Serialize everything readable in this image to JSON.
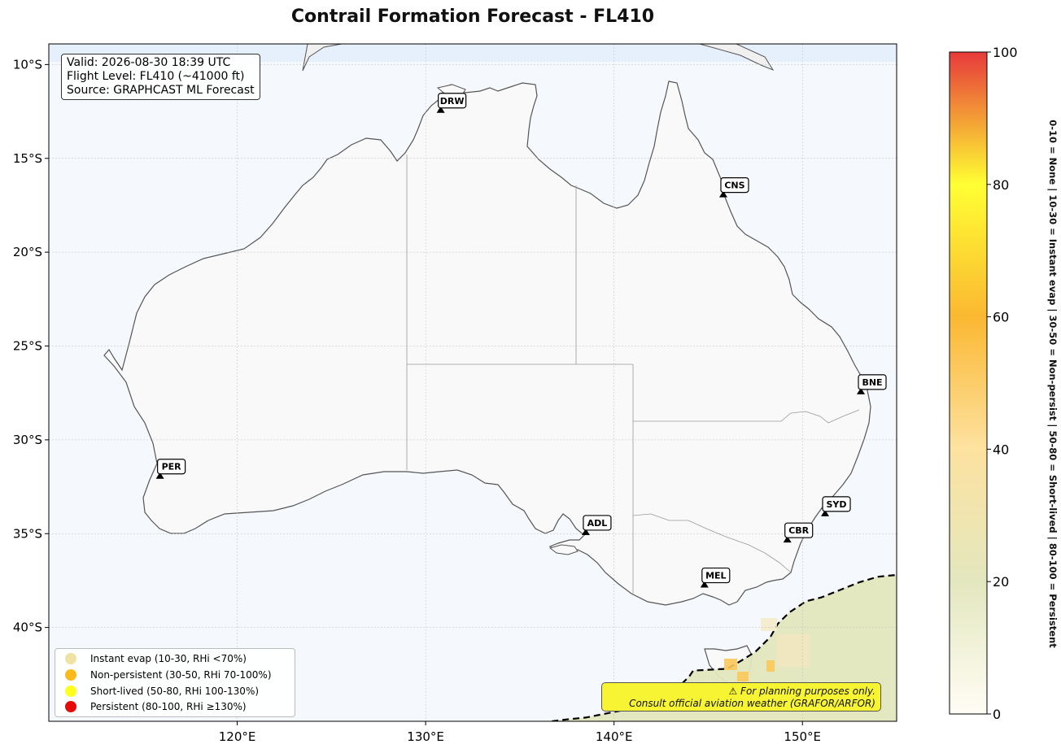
{
  "title": "Contrail Formation Forecast - FL410",
  "info": {
    "valid": "Valid: 2026-08-30 18:39 UTC",
    "flight_level": "Flight Level: FL410 (~41000 ft)",
    "source": "Source: GRAPHCAST ML Forecast"
  },
  "map": {
    "lon_range": [
      110,
      155
    ],
    "lat_range": [
      -45,
      -8.9
    ],
    "x_ticks": [
      {
        "value": 120,
        "label": "120°E"
      },
      {
        "value": 130,
        "label": "130°E"
      },
      {
        "value": 140,
        "label": "140°E"
      },
      {
        "value": 150,
        "label": "150°E"
      }
    ],
    "y_ticks": [
      {
        "value": -10,
        "label": "10°S"
      },
      {
        "value": -15,
        "label": "15°S"
      },
      {
        "value": -20,
        "label": "20°S"
      },
      {
        "value": -25,
        "label": "25°S"
      },
      {
        "value": -30,
        "label": "30°S"
      },
      {
        "value": -35,
        "label": "35°S"
      },
      {
        "value": -40,
        "label": "40°S"
      }
    ],
    "grid": true,
    "ocean_color": "#f5f9fd",
    "land_color": "#f9f9f9",
    "airports": [
      {
        "code": "DRW",
        "lon": 130.8,
        "lat": -12.4
      },
      {
        "code": "CNS",
        "lon": 145.8,
        "lat": -16.9
      },
      {
        "code": "BNE",
        "lon": 153.1,
        "lat": -27.4
      },
      {
        "code": "PER",
        "lon": 115.9,
        "lat": -31.9
      },
      {
        "code": "ADL",
        "lon": 138.5,
        "lat": -34.9
      },
      {
        "code": "SYD",
        "lon": 151.2,
        "lat": -33.9
      },
      {
        "code": "CBR",
        "lon": 149.2,
        "lat": -35.3
      },
      {
        "code": "MEL",
        "lon": 144.8,
        "lat": -37.7
      }
    ],
    "contrail_region_boundary": [
      [
        136.7,
        -45.0
      ],
      [
        137.5,
        -44.9
      ],
      [
        138.5,
        -44.8
      ],
      [
        140.0,
        -44.5
      ],
      [
        141.5,
        -44.2
      ],
      [
        142.5,
        -43.7
      ],
      [
        143.4,
        -43.2
      ],
      [
        144.0,
        -42.6
      ],
      [
        144.2,
        -42.3
      ],
      [
        146.0,
        -42.2
      ],
      [
        146.7,
        -41.8
      ],
      [
        147.5,
        -41.3
      ],
      [
        148.3,
        -40.5
      ],
      [
        148.7,
        -39.8
      ],
      [
        149.3,
        -39.2
      ],
      [
        150.2,
        -38.6
      ],
      [
        151.0,
        -38.4
      ],
      [
        152.0,
        -38.0
      ],
      [
        153.0,
        -37.6
      ],
      [
        154.0,
        -37.3
      ],
      [
        155.0,
        -37.2
      ]
    ]
  },
  "legend": [
    {
      "label": "Instant evap (10-30, RHi <70%)",
      "color": "#f0e2a3"
    },
    {
      "label": "Non-persistent (30-50, RHi 70-100%)",
      "color": "#fbb91c"
    },
    {
      "label": "Short-lived (50-80, RHi 100-130%)",
      "color": "#ffff1e"
    },
    {
      "label": "Persistent (80-100, RHi ≥130%)",
      "color": "#e60b0b"
    }
  ],
  "warning": {
    "line1": "⚠ For planning purposes only.",
    "line2": "Consult official aviation weather (GRAFOR/ARFOR)"
  },
  "colorbar": {
    "min": 0,
    "max": 100,
    "ticks": [
      0,
      20,
      40,
      60,
      80,
      100
    ],
    "colors": [
      "#fffdf5",
      "#e3e7be",
      "#fde2a0",
      "#fbb832",
      "#ffff33",
      "#e73a3a"
    ],
    "label": "0-10 = None  |  10-30 = Instant evap  |  30-50 = Non-persist  |  50-80 = Short-lived  |  80-100 = Persistent"
  }
}
